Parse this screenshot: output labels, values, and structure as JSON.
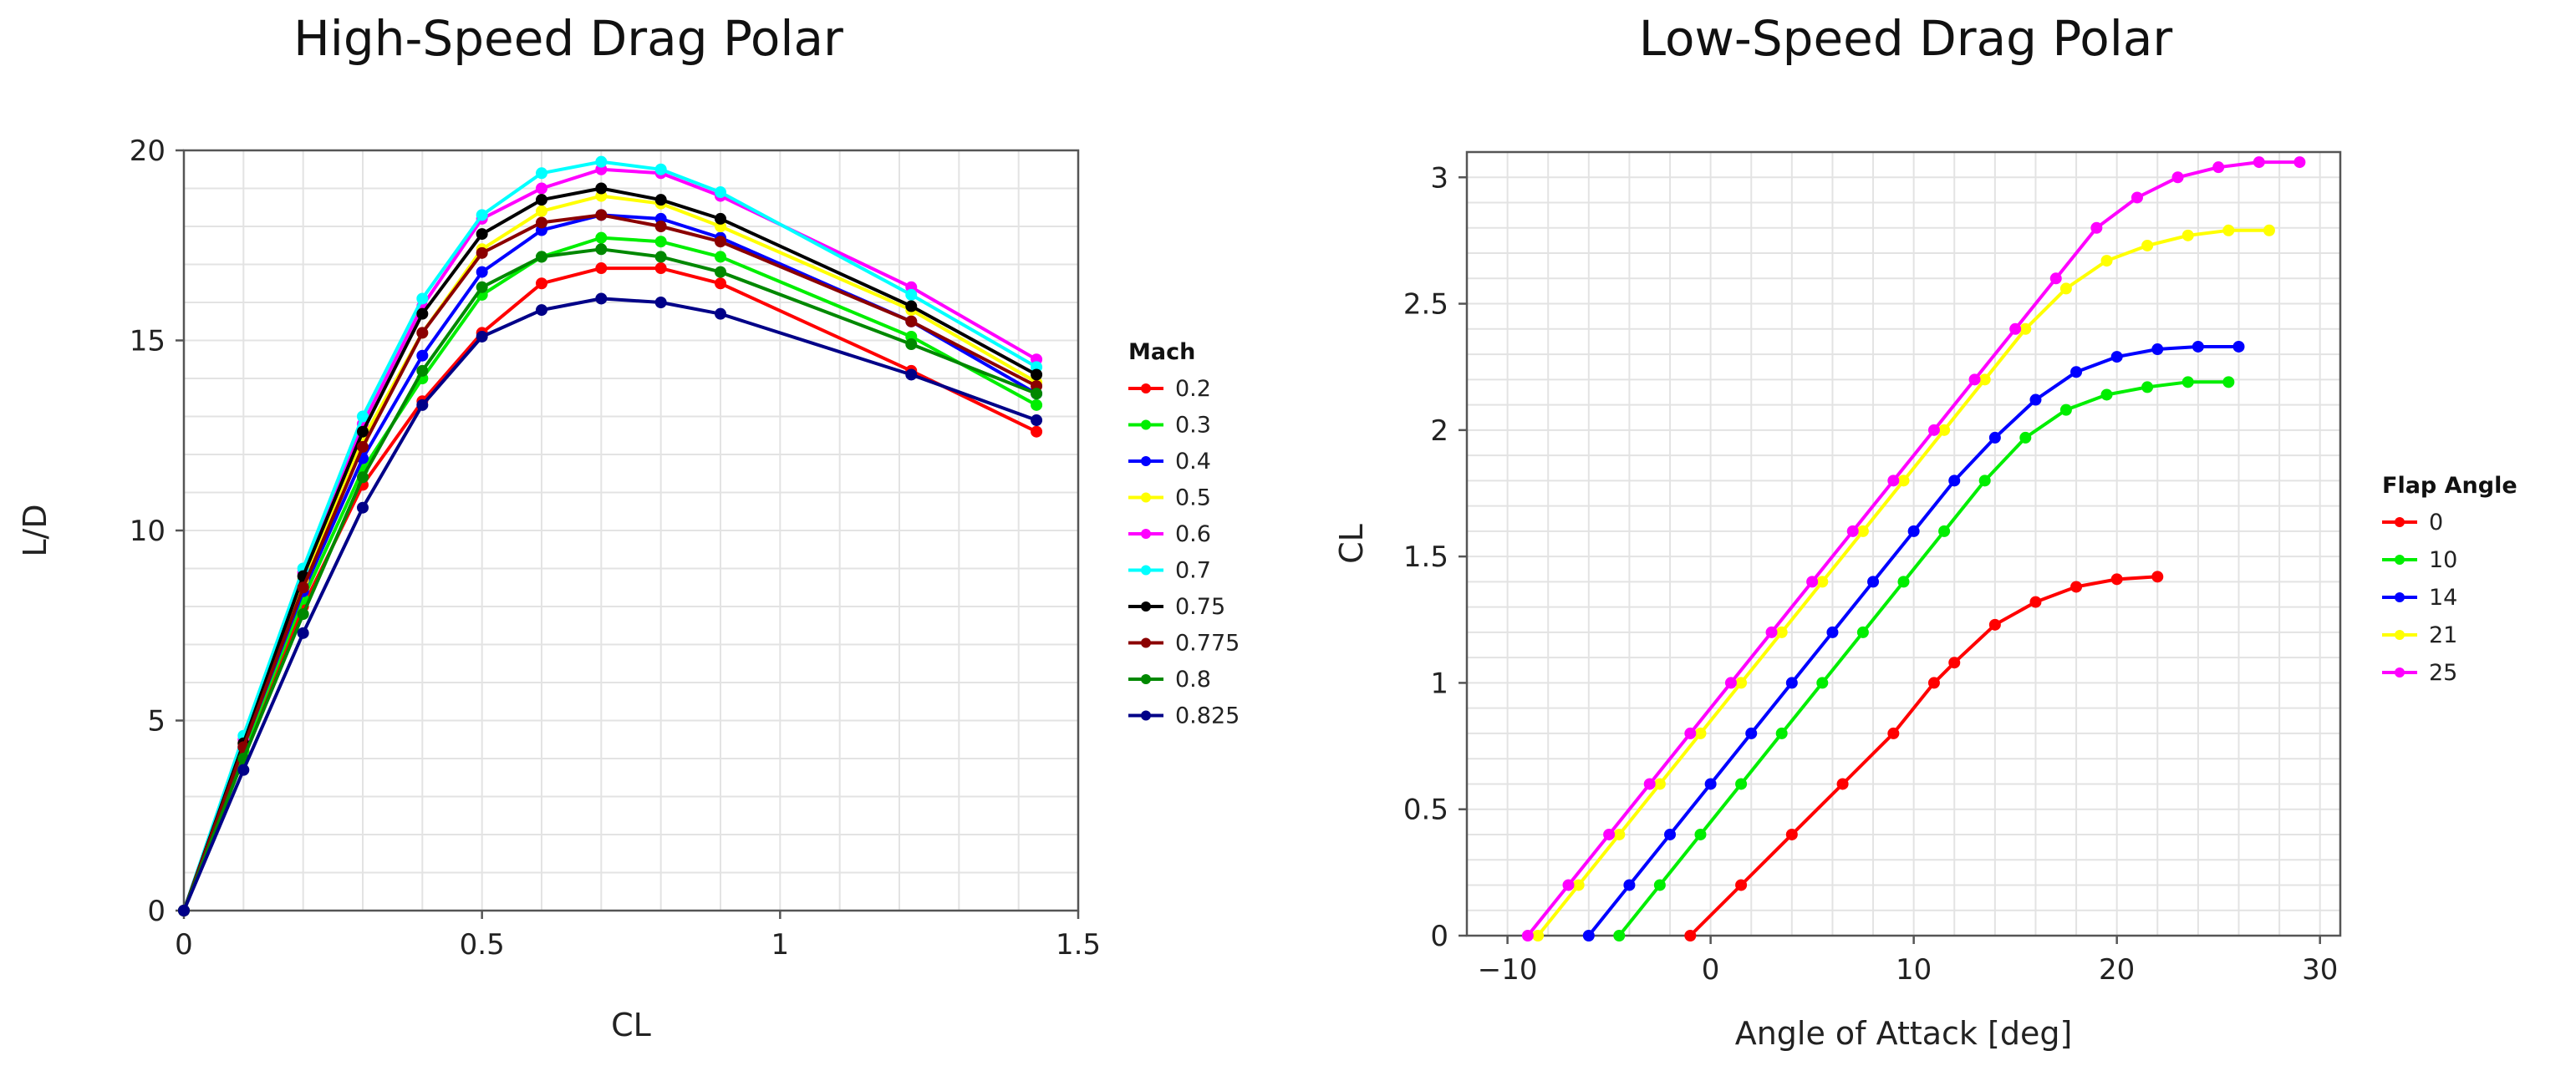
{
  "chart_data": [
    {
      "type": "line",
      "title": "High-Speed Drag Polar",
      "xlabel": "CL",
      "ylabel": "L/D",
      "xlim": [
        0,
        1.5
      ],
      "ylim": [
        0,
        20
      ],
      "xticks": [
        "0",
        "0.5",
        "1",
        "1.5"
      ],
      "yticks": [
        "0",
        "5",
        "10",
        "15",
        "20"
      ],
      "grid": true,
      "legend_title": "Mach",
      "legend_position": "right",
      "series": [
        {
          "name": "0.2",
          "color": "#ff0000",
          "x": [
            0,
            0.1,
            0.2,
            0.3,
            0.4,
            0.5,
            0.6,
            0.7,
            0.8,
            0.9,
            1.22,
            1.43
          ],
          "y": [
            0,
            4.2,
            8.0,
            11.2,
            13.4,
            15.2,
            16.5,
            16.9,
            16.9,
            16.5,
            14.2,
            12.6
          ]
        },
        {
          "name": "0.3",
          "color": "#00ee00",
          "x": [
            0,
            0.1,
            0.2,
            0.3,
            0.4,
            0.5,
            0.6,
            0.7,
            0.8,
            0.9,
            1.22,
            1.43
          ],
          "y": [
            0,
            4.2,
            8.2,
            11.6,
            14.0,
            16.2,
            17.2,
            17.7,
            17.6,
            17.2,
            15.1,
            13.3
          ]
        },
        {
          "name": "0.4",
          "color": "#0000ff",
          "x": [
            0,
            0.1,
            0.2,
            0.3,
            0.4,
            0.5,
            0.6,
            0.7,
            0.8,
            0.9,
            1.22,
            1.43
          ],
          "y": [
            0,
            4.3,
            8.4,
            11.9,
            14.6,
            16.8,
            17.9,
            18.3,
            18.2,
            17.7,
            15.5,
            13.6
          ]
        },
        {
          "name": "0.5",
          "color": "#ffff00",
          "x": [
            0,
            0.1,
            0.2,
            0.3,
            0.4,
            0.5,
            0.6,
            0.7,
            0.8,
            0.9,
            1.22,
            1.43
          ],
          "y": [
            0,
            4.4,
            8.7,
            12.4,
            15.2,
            17.4,
            18.4,
            18.8,
            18.6,
            18.0,
            15.8,
            13.9
          ]
        },
        {
          "name": "0.6",
          "color": "#ff00ff",
          "x": [
            0,
            0.1,
            0.2,
            0.3,
            0.4,
            0.5,
            0.6,
            0.7,
            0.8,
            0.9,
            1.22,
            1.43
          ],
          "y": [
            0,
            4.5,
            8.9,
            12.8,
            15.9,
            18.2,
            19.0,
            19.5,
            19.4,
            18.8,
            16.4,
            14.5
          ]
        },
        {
          "name": "0.7",
          "color": "#00ffff",
          "x": [
            0,
            0.1,
            0.2,
            0.3,
            0.4,
            0.5,
            0.6,
            0.7,
            0.8,
            0.9,
            1.22,
            1.43
          ],
          "y": [
            0,
            4.6,
            9.0,
            13.0,
            16.1,
            18.3,
            19.4,
            19.7,
            19.5,
            18.9,
            16.2,
            14.3
          ]
        },
        {
          "name": "0.75",
          "color": "#000000",
          "x": [
            0,
            0.1,
            0.2,
            0.3,
            0.4,
            0.5,
            0.6,
            0.7,
            0.8,
            0.9,
            1.22,
            1.43
          ],
          "y": [
            0,
            4.4,
            8.8,
            12.6,
            15.7,
            17.8,
            18.7,
            19.0,
            18.7,
            18.2,
            15.9,
            14.1
          ]
        },
        {
          "name": "0.775",
          "color": "#8b0000",
          "x": [
            0,
            0.1,
            0.2,
            0.3,
            0.4,
            0.5,
            0.6,
            0.7,
            0.8,
            0.9,
            1.22,
            1.43
          ],
          "y": [
            0,
            4.3,
            8.5,
            12.2,
            15.2,
            17.3,
            18.1,
            18.3,
            18.0,
            17.6,
            15.5,
            13.8
          ]
        },
        {
          "name": "0.8",
          "color": "#008800",
          "x": [
            0,
            0.1,
            0.2,
            0.3,
            0.4,
            0.5,
            0.6,
            0.7,
            0.8,
            0.9,
            1.22,
            1.43
          ],
          "y": [
            0,
            4.0,
            7.8,
            11.4,
            14.2,
            16.4,
            17.2,
            17.4,
            17.2,
            16.8,
            14.9,
            13.6
          ]
        },
        {
          "name": "0.825",
          "color": "#000088",
          "x": [
            0,
            0.1,
            0.2,
            0.3,
            0.4,
            0.5,
            0.6,
            0.7,
            0.8,
            0.9,
            1.22,
            1.43
          ],
          "y": [
            0,
            3.7,
            7.3,
            10.6,
            13.3,
            15.1,
            15.8,
            16.1,
            16.0,
            15.7,
            14.1,
            12.9
          ]
        }
      ]
    },
    {
      "type": "line",
      "title": "Low-Speed Drag Polar",
      "xlabel": "Angle of Attack [deg]",
      "ylabel": "CL",
      "xlim": [
        -12,
        31
      ],
      "ylim": [
        0,
        3.1
      ],
      "xticks": [
        "−10",
        "0",
        "10",
        "20",
        "30"
      ],
      "yticks": [
        "0",
        "0.5",
        "1",
        "1.5",
        "2",
        "2.5",
        "3"
      ],
      "grid": true,
      "legend_title": "Flap Angle",
      "legend_position": "right",
      "series": [
        {
          "name": "0",
          "color": "#ff0000",
          "x": [
            -1,
            1.5,
            4,
            6.5,
            9,
            11,
            12,
            14,
            16,
            18,
            20,
            22
          ],
          "y": [
            0,
            0.2,
            0.4,
            0.6,
            0.8,
            1.0,
            1.08,
            1.23,
            1.32,
            1.38,
            1.41,
            1.42
          ]
        },
        {
          "name": "10",
          "color": "#00ee00",
          "x": [
            -4.5,
            -2.5,
            -0.5,
            1.5,
            3.5,
            5.5,
            7.5,
            9.5,
            11.5,
            13.5,
            15.5,
            17.5,
            19.5,
            21.5,
            23.5,
            25.5
          ],
          "y": [
            0,
            0.2,
            0.4,
            0.6,
            0.8,
            1.0,
            1.2,
            1.4,
            1.6,
            1.8,
            1.97,
            2.08,
            2.14,
            2.17,
            2.19,
            2.19
          ]
        },
        {
          "name": "14",
          "color": "#0000ff",
          "x": [
            -6,
            -4,
            -2,
            0,
            2,
            4,
            6,
            8,
            10,
            12,
            14,
            16,
            18,
            20,
            22,
            24,
            26
          ],
          "y": [
            0,
            0.2,
            0.4,
            0.6,
            0.8,
            1.0,
            1.2,
            1.4,
            1.6,
            1.8,
            1.97,
            2.12,
            2.23,
            2.29,
            2.32,
            2.33,
            2.33
          ]
        },
        {
          "name": "21",
          "color": "#ffff00",
          "x": [
            -8.5,
            -6.5,
            -4.5,
            -2.5,
            -0.5,
            1.5,
            3.5,
            5.5,
            7.5,
            9.5,
            11.5,
            13.5,
            15.5,
            17.5,
            19.5,
            21.5,
            23.5,
            25.5,
            27.5
          ],
          "y": [
            0,
            0.2,
            0.4,
            0.6,
            0.8,
            1.0,
            1.2,
            1.4,
            1.6,
            1.8,
            2.0,
            2.2,
            2.4,
            2.56,
            2.67,
            2.73,
            2.77,
            2.79,
            2.79
          ]
        },
        {
          "name": "25",
          "color": "#ff00ff",
          "x": [
            -9,
            -7,
            -5,
            -3,
            -1,
            1,
            3,
            5,
            7,
            9,
            11,
            13,
            15,
            17,
            19,
            21,
            23,
            25,
            27,
            29
          ],
          "y": [
            0,
            0.2,
            0.4,
            0.6,
            0.8,
            1.0,
            1.2,
            1.4,
            1.6,
            1.8,
            2.0,
            2.2,
            2.4,
            2.6,
            2.8,
            2.92,
            3.0,
            3.04,
            3.06,
            3.06
          ]
        }
      ]
    }
  ]
}
